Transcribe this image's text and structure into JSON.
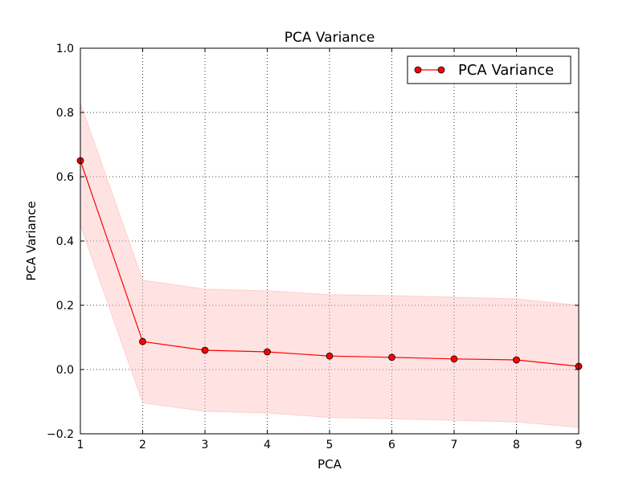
{
  "chart_data": {
    "type": "line",
    "title": "PCA Variance",
    "xlabel": "PCA",
    "ylabel": "PCA Variance",
    "xlim": [
      1,
      9
    ],
    "ylim": [
      -0.2,
      1.0
    ],
    "xticks": [
      1,
      2,
      3,
      4,
      5,
      6,
      7,
      8,
      9
    ],
    "yticks": [
      -0.2,
      0.0,
      0.2,
      0.4,
      0.6,
      0.8,
      1.0
    ],
    "ytick_labels": [
      "−0.2",
      "0.0",
      "0.2",
      "0.4",
      "0.6",
      "0.8",
      "1.0"
    ],
    "grid": true,
    "legend_position": "top-right",
    "series": [
      {
        "name": "PCA Variance",
        "color": "#ff0000",
        "marker": "circle",
        "x": [
          1,
          2,
          3,
          4,
          5,
          6,
          7,
          8,
          9
        ],
        "values": [
          0.65,
          0.087,
          0.06,
          0.055,
          0.042,
          0.038,
          0.033,
          0.03,
          0.01
        ],
        "band_upper": [
          0.83,
          0.278,
          0.25,
          0.245,
          0.233,
          0.23,
          0.225,
          0.22,
          0.2
        ],
        "band_lower": [
          0.45,
          -0.104,
          -0.13,
          -0.135,
          -0.149,
          -0.153,
          -0.158,
          -0.163,
          -0.18
        ],
        "band_color": "#ffc0c0"
      }
    ]
  }
}
